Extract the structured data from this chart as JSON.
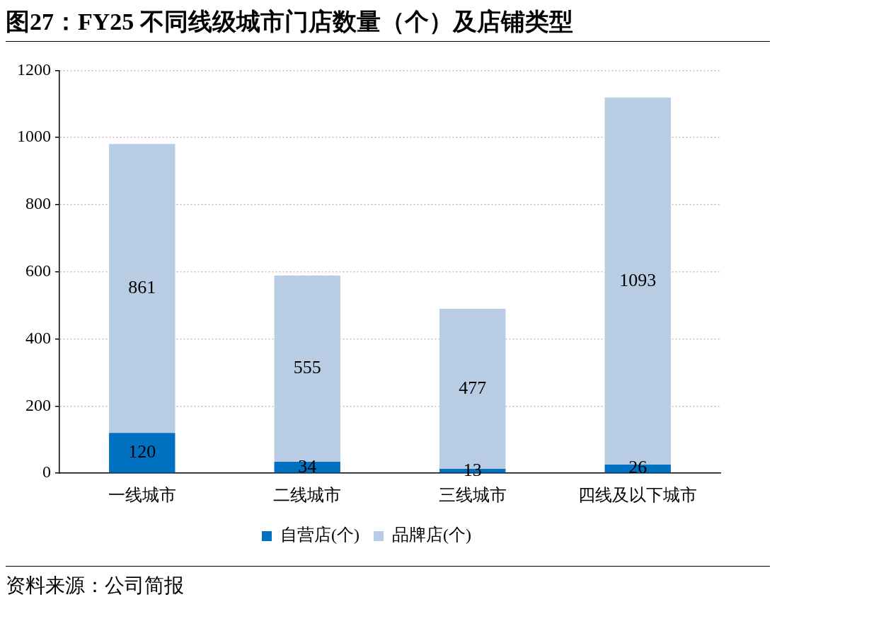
{
  "chart_data": {
    "type": "bar",
    "title": "图27：FY25 不同线级城市门店数量（个）及店铺类型",
    "categories": [
      "一线城市",
      "二线城市",
      "三线城市",
      "四线及以下城市"
    ],
    "series": [
      {
        "name": "自营店(个)",
        "color": "#0070c0",
        "values": [
          120,
          34,
          13,
          26
        ]
      },
      {
        "name": "品牌店(个)",
        "color": "#b8cce4",
        "values": [
          861,
          555,
          477,
          1093
        ]
      }
    ],
    "stacked": true,
    "ylim": [
      0,
      1200
    ],
    "yticks": [
      0,
      200,
      400,
      600,
      800,
      1000,
      1200
    ],
    "grid": "y",
    "legend": "bottom",
    "data_labels": true,
    "annotations": [
      "资料来源：公司简报"
    ]
  }
}
